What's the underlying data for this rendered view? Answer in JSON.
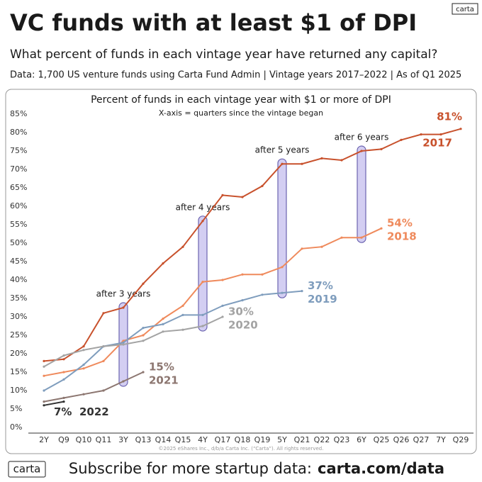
{
  "header": {
    "title": "VC funds with at least $1 of DPI",
    "subtitle": "What percent of funds in each vintage year have returned any capital?",
    "source": "Data: 1,700 US venture funds using Carta Fund Admin | Vintage years 2017–2022 | As of Q1 2025",
    "logo": "carta"
  },
  "chart_data": {
    "type": "line",
    "title": "Percent of funds in each vintage year with $1 or more of DPI",
    "subtitle": "X-axis = quarters since the vintage began",
    "categories": [
      "2Y",
      "Q9",
      "Q10",
      "Q11",
      "3Y",
      "Q13",
      "Q14",
      "Q15",
      "4Y",
      "Q17",
      "Q18",
      "Q19",
      "5Y",
      "Q21",
      "Q22",
      "Q23",
      "6Y",
      "Q25",
      "Q26",
      "Q27",
      "7Y",
      "Q29"
    ],
    "ylim": [
      0,
      85
    ],
    "yticks": [
      {
        "value": 0,
        "label": "0%"
      },
      {
        "value": 5,
        "label": "5%"
      },
      {
        "value": 10,
        "label": "10%"
      },
      {
        "value": 15,
        "label": "15%"
      },
      {
        "value": 20,
        "label": "20%"
      },
      {
        "value": 25,
        "label": "25%"
      },
      {
        "value": 30,
        "label": "30%"
      },
      {
        "value": 35,
        "label": "35%"
      },
      {
        "value": 40,
        "label": "40%"
      },
      {
        "value": 45,
        "label": "45%"
      },
      {
        "value": 50,
        "label": "50%"
      },
      {
        "value": 55,
        "label": "55%"
      },
      {
        "value": 60,
        "label": "60%"
      },
      {
        "value": 65,
        "label": "65%"
      },
      {
        "value": 70,
        "label": "70%"
      },
      {
        "value": 75,
        "label": "75%"
      },
      {
        "value": 80,
        "label": "80%"
      },
      {
        "value": 85,
        "label": "85%"
      }
    ],
    "grid": false,
    "series": [
      {
        "name": "2017",
        "color": "#c8512c",
        "values": [
          18,
          18.5,
          22,
          31,
          32.5,
          39,
          44.5,
          49,
          56,
          63,
          62.5,
          65.5,
          71.5,
          71.5,
          73,
          72.5,
          75,
          75.5,
          78,
          79.5,
          79.5,
          81
        ],
        "value_labels": [
          null,
          null,
          null,
          null,
          null,
          null,
          null,
          null,
          null,
          null,
          null,
          null,
          null,
          null,
          null,
          null,
          null,
          null,
          null,
          null,
          null,
          "81%"
        ]
      },
      {
        "name": "2018",
        "color": "#ef8a5c",
        "values": [
          14,
          15,
          16,
          18,
          23.5,
          25,
          29.5,
          33,
          39.5,
          40,
          41.5,
          41.5,
          43.5,
          48.5,
          49,
          51.5,
          51.5,
          54,
          null,
          null,
          null,
          null
        ],
        "value_labels": [
          null,
          null,
          null,
          null,
          null,
          null,
          null,
          null,
          null,
          null,
          null,
          null,
          null,
          null,
          null,
          null,
          null,
          "54%",
          null,
          null,
          null,
          null
        ]
      },
      {
        "name": "2019",
        "color": "#7f9dbd",
        "values": [
          10,
          13,
          17,
          22,
          23,
          27,
          28,
          30.5,
          30.5,
          33,
          34.5,
          36,
          36.5,
          37,
          null,
          null,
          null,
          null,
          null,
          null,
          null,
          null
        ],
        "value_labels": [
          null,
          null,
          null,
          null,
          null,
          null,
          null,
          null,
          null,
          null,
          null,
          null,
          null,
          "37%",
          null,
          null,
          null,
          null,
          null,
          null,
          null,
          null
        ]
      },
      {
        "name": "2020",
        "color": "#a3a3a3",
        "values": [
          16.5,
          19.5,
          21,
          22,
          22.5,
          23.5,
          26,
          26.5,
          27.5,
          30,
          null,
          null,
          null,
          null,
          null,
          null,
          null,
          null,
          null,
          null,
          null,
          null
        ],
        "value_labels": [
          null,
          null,
          null,
          null,
          null,
          null,
          null,
          null,
          null,
          "30%",
          null,
          null,
          null,
          null,
          null,
          null,
          null,
          null,
          null,
          null,
          null,
          null
        ]
      },
      {
        "name": "2021",
        "color": "#8c7670",
        "values": [
          7,
          8,
          9,
          10,
          12.5,
          15,
          null,
          null,
          null,
          null,
          null,
          null,
          null,
          null,
          null,
          null,
          null,
          null,
          null,
          null,
          null,
          null
        ],
        "value_labels": [
          null,
          null,
          null,
          null,
          null,
          "15%",
          null,
          null,
          null,
          null,
          null,
          null,
          null,
          null,
          null,
          null,
          null,
          null,
          null,
          null,
          null,
          null
        ]
      },
      {
        "name": "2022",
        "color": "#333333",
        "values": [
          6,
          7,
          null,
          null,
          null,
          null,
          null,
          null,
          null,
          null,
          null,
          null,
          null,
          null,
          null,
          null,
          null,
          null,
          null,
          null,
          null,
          null
        ],
        "value_labels": [
          null,
          "7%",
          null,
          null,
          null,
          null,
          null,
          null,
          null,
          null,
          null,
          null,
          null,
          null,
          null,
          null,
          null,
          null,
          null,
          null,
          null,
          null
        ]
      }
    ],
    "annotations": [
      {
        "text": "after 3 years",
        "x": "3Y"
      },
      {
        "text": "after 4 years",
        "x": "4Y"
      },
      {
        "text": "after 5 years",
        "x": "5Y"
      },
      {
        "text": "after 6 years",
        "x": "6Y"
      }
    ],
    "copyright": "©2025 eShares Inc., d/b/a Carta Inc. (“Carta”). All rights reserved."
  },
  "footer": {
    "logo": "carta",
    "text": "Subscribe for more startup data:",
    "link": "carta.com/data"
  }
}
